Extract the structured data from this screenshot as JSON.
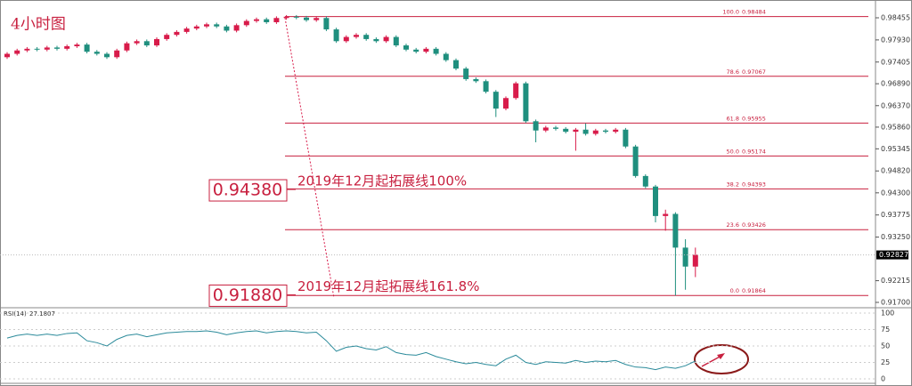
{
  "chart_data": {
    "type": "candlestick",
    "title": "4小时图",
    "open": [
      0.9752,
      0.976,
      0.9768,
      0.9772,
      0.977,
      0.9775,
      0.9772,
      0.9778,
      0.9782,
      0.9765,
      0.976,
      0.9752,
      0.9768,
      0.9785,
      0.979,
      0.978,
      0.9795,
      0.9805,
      0.9812,
      0.982,
      0.9825,
      0.983,
      0.9825,
      0.9815,
      0.9828,
      0.9838,
      0.9842,
      0.9835,
      0.9845,
      0.9848,
      0.9846,
      0.984,
      0.9845,
      0.9818,
      0.979,
      0.98,
      0.9805,
      0.9795,
      0.979,
      0.98,
      0.978,
      0.977,
      0.9765,
      0.9772,
      0.976,
      0.9745,
      0.9725,
      0.97,
      0.9695,
      0.967,
      0.963,
      0.9655,
      0.969,
      0.96,
      0.9578,
      0.9585,
      0.9582,
      0.9575,
      0.958,
      0.957,
      0.9578,
      0.9575,
      0.958,
      0.954,
      0.947,
      0.9445,
      0.9375,
      0.938,
      0.93,
      0.9255
    ],
    "high": [
      0.9764,
      0.9772,
      0.9776,
      0.9776,
      0.9779,
      0.9779,
      0.9782,
      0.9786,
      0.9786,
      0.9769,
      0.9764,
      0.9772,
      0.9789,
      0.9794,
      0.9794,
      0.9799,
      0.9809,
      0.9816,
      0.9824,
      0.9829,
      0.9834,
      0.9834,
      0.9829,
      0.9832,
      0.9842,
      0.9846,
      0.9846,
      0.9849,
      0.9852,
      0.9852,
      0.985,
      0.9849,
      0.9849,
      0.9822,
      0.9804,
      0.9809,
      0.9809,
      0.9799,
      0.9804,
      0.9804,
      0.9784,
      0.9774,
      0.9776,
      0.9776,
      0.9764,
      0.9749,
      0.9729,
      0.9704,
      0.9699,
      0.9674,
      0.9659,
      0.9694,
      0.9694,
      0.9604,
      0.9589,
      0.9589,
      0.9586,
      0.9584,
      0.9595,
      0.9582,
      0.9582,
      0.9584,
      0.9584,
      0.9544,
      0.9474,
      0.9449,
      0.939,
      0.9384,
      0.932,
      0.93
    ],
    "low": [
      0.9748,
      0.9756,
      0.9764,
      0.9766,
      0.9766,
      0.9768,
      0.9768,
      0.9774,
      0.9761,
      0.9756,
      0.9748,
      0.9748,
      0.9764,
      0.9781,
      0.9776,
      0.9776,
      0.9791,
      0.9801,
      0.9808,
      0.9816,
      0.9821,
      0.9821,
      0.9811,
      0.9811,
      0.9824,
      0.9834,
      0.9831,
      0.9831,
      0.9841,
      0.9842,
      0.9836,
      0.9836,
      0.9814,
      0.9786,
      0.9786,
      0.9796,
      0.9791,
      0.9786,
      0.9786,
      0.9776,
      0.9766,
      0.9761,
      0.9761,
      0.9756,
      0.9741,
      0.9721,
      0.9696,
      0.9691,
      0.9666,
      0.961,
      0.9626,
      0.9651,
      0.9596,
      0.955,
      0.9574,
      0.9578,
      0.9571,
      0.953,
      0.9566,
      0.9566,
      0.9571,
      0.9571,
      0.9536,
      0.9466,
      0.9441,
      0.936,
      0.934,
      0.9186,
      0.92,
      0.923
    ],
    "close": [
      0.976,
      0.9768,
      0.9772,
      0.977,
      0.9775,
      0.9772,
      0.9778,
      0.9782,
      0.9765,
      0.976,
      0.9752,
      0.9768,
      0.9785,
      0.979,
      0.978,
      0.9795,
      0.9805,
      0.9812,
      0.982,
      0.9825,
      0.983,
      0.9825,
      0.9815,
      0.9828,
      0.9838,
      0.9842,
      0.9835,
      0.9845,
      0.9848,
      0.9846,
      0.984,
      0.9845,
      0.9818,
      0.979,
      0.98,
      0.9805,
      0.9795,
      0.979,
      0.98,
      0.978,
      0.977,
      0.9765,
      0.9772,
      0.976,
      0.9745,
      0.9725,
      0.97,
      0.9695,
      0.967,
      0.963,
      0.9655,
      0.969,
      0.96,
      0.9578,
      0.9585,
      0.9582,
      0.9575,
      0.958,
      0.957,
      0.9578,
      0.9575,
      0.958,
      0.954,
      0.947,
      0.9445,
      0.9375,
      0.938,
      0.93,
      0.9255,
      0.9283
    ],
    "up_color": "#d81b4a",
    "down_color": "#1f8f7e",
    "ylim": [
      0.91594,
      0.98772
    ],
    "yticks": [
      {
        "value": 0.98455,
        "label": "0.98455"
      },
      {
        "value": 0.9793,
        "label": "0.97930"
      },
      {
        "value": 0.97405,
        "label": "0.97405"
      },
      {
        "value": 0.9689,
        "label": "0.96890"
      },
      {
        "value": 0.9637,
        "label": "0.96370"
      },
      {
        "value": 0.9586,
        "label": "0.95860"
      },
      {
        "value": 0.95345,
        "label": "0.95345"
      },
      {
        "value": 0.9482,
        "label": "0.94820"
      },
      {
        "value": 0.943,
        "label": "0.94300"
      },
      {
        "value": 0.93775,
        "label": "0.93775"
      },
      {
        "value": 0.9325,
        "label": "0.93250"
      },
      {
        "value": 0.92215,
        "label": "0.92215"
      },
      {
        "value": 0.917,
        "label": "0.91700"
      }
    ],
    "current_price": 0.92827,
    "fib_levels": [
      {
        "level": "100.0",
        "price": 0.98484
      },
      {
        "level": "78.6",
        "price": 0.97067
      },
      {
        "level": "61.8",
        "price": 0.95955
      },
      {
        "level": "50.0",
        "price": 0.95174
      },
      {
        "level": "38.2",
        "price": 0.94393
      },
      {
        "level": "23.6",
        "price": 0.93426
      },
      {
        "level": "0.0",
        "price": 0.91864
      }
    ],
    "annotations": [
      {
        "value": 0.9438,
        "label": "0.94380",
        "text": "2019年12月起拓展线100%"
      },
      {
        "value": 0.9188,
        "label": "0.91880",
        "text": "2019年12月起拓展线161.8%"
      }
    ],
    "rsi": {
      "name": "RSI(14)",
      "current": 27.1807,
      "color": "#2a8a9a",
      "values": [
        62,
        66,
        68,
        66,
        68,
        66,
        69,
        70,
        58,
        55,
        50,
        60,
        66,
        68,
        64,
        67,
        70,
        71,
        72,
        72,
        73,
        71,
        67,
        70,
        72,
        73,
        70,
        72,
        73,
        72,
        70,
        71,
        58,
        42,
        48,
        50,
        46,
        44,
        49,
        40,
        37,
        36,
        40,
        34,
        30,
        26,
        23,
        25,
        22,
        20,
        30,
        36,
        25,
        22,
        26,
        25,
        24,
        28,
        25,
        27,
        26,
        28,
        22,
        18,
        17,
        14,
        18,
        16,
        20,
        27.1807
      ],
      "ylim": [
        0,
        100
      ],
      "yticks": [
        100,
        75,
        50,
        25,
        0
      ]
    }
  }
}
